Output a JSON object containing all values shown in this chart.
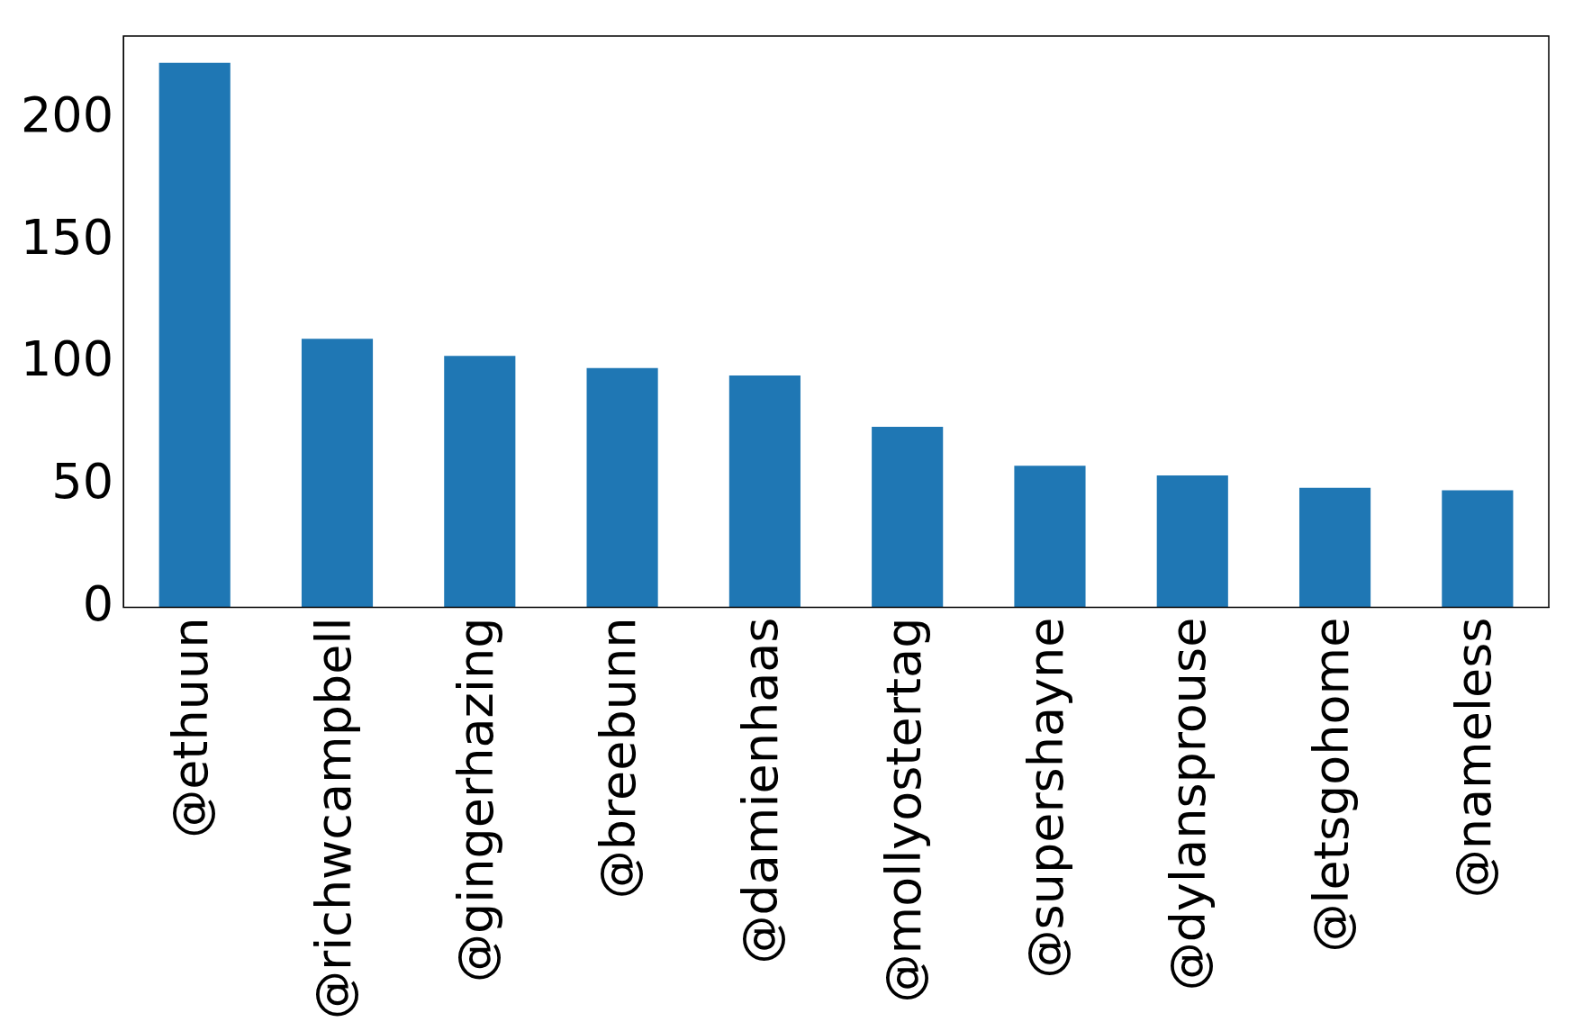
{
  "chart_data": {
    "type": "bar",
    "categories": [
      "@ethuun",
      "@richwcampbell",
      "@gingerhazing",
      "@breebunn",
      "@damienhaas",
      "@mollyostertag",
      "@supershayne",
      "@dylansprouse",
      "@letsgohome",
      "@nameless"
    ],
    "values": [
      223,
      110,
      103,
      98,
      95,
      74,
      58,
      54,
      49,
      48
    ],
    "color": "#1f77b4",
    "ylim": [
      0,
      234
    ],
    "yticks": [
      0,
      50,
      100,
      150,
      200
    ],
    "grid": false,
    "legend": false
  }
}
